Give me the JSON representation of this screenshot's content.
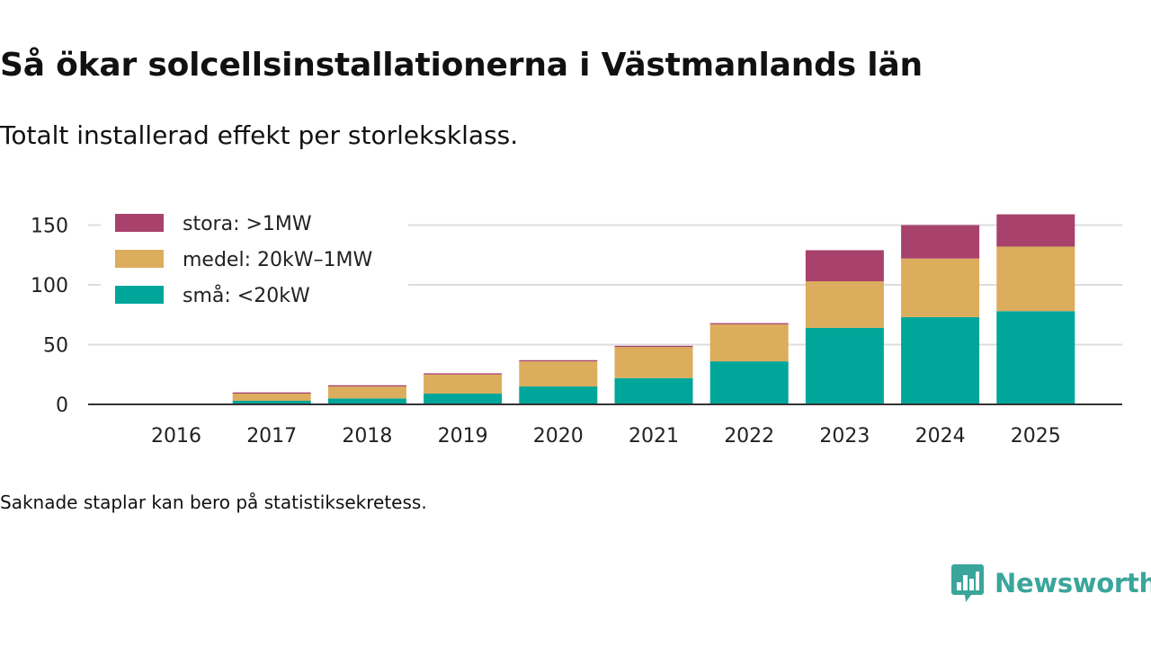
{
  "header": {
    "title": "Så ökar solcellsinstallationerna i Västmanlands län",
    "subtitle": "Totalt installerad effekt per storleksklass."
  },
  "footer": {
    "note": "Saknade staplar kan bero på statistiksekretess.",
    "brand": "Newsworthy",
    "brand_color": "#3aa59a"
  },
  "chart_data": {
    "type": "bar",
    "stacked": true,
    "title": "Så ökar solcellsinstallationerna i Västmanlands län",
    "subtitle": "Totalt installerad effekt per storleksklass.",
    "xlabel": "",
    "ylabel": "",
    "ylim": [
      0,
      160
    ],
    "yticks": [
      0,
      50,
      100,
      150
    ],
    "grid": true,
    "legend_position": "top-left",
    "categories": [
      "2016",
      "2017",
      "2018",
      "2019",
      "2020",
      "2021",
      "2022",
      "2023",
      "2024",
      "2025"
    ],
    "series": [
      {
        "name": "små: <20kW",
        "color": "#00a69a",
        "values": [
          0,
          3,
          5,
          9,
          15,
          22,
          36,
          64,
          73,
          78
        ]
      },
      {
        "name": "medel: 20kW–1MW",
        "color": "#dbad5c",
        "values": [
          0,
          6,
          10,
          16,
          21,
          26,
          31,
          39,
          49,
          54
        ]
      },
      {
        "name": "stora: >1MW",
        "color": "#a8426c",
        "values": [
          0,
          1,
          1,
          1,
          1,
          1,
          1,
          26,
          28,
          27
        ]
      }
    ],
    "legend_order": [
      "stora: >1MW",
      "medel: 20kW–1MW",
      "små: <20kW"
    ]
  }
}
